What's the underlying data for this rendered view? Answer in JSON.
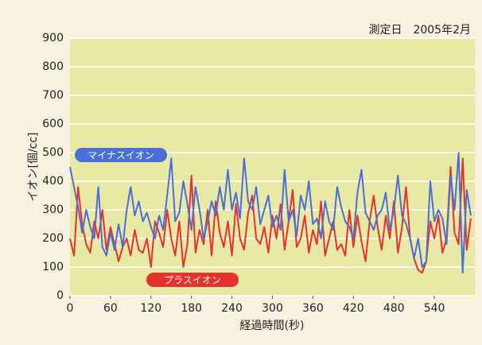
{
  "chart_data": {
    "type": "line",
    "title": "測定日　2005年2月",
    "y_label": "イオン[個/cc]",
    "x_label": "経過時間(秒)",
    "x": [
      0,
      6,
      12,
      18,
      24,
      30,
      36,
      42,
      48,
      54,
      60,
      66,
      72,
      78,
      84,
      90,
      96,
      102,
      108,
      114,
      120,
      126,
      132,
      138,
      144,
      150,
      156,
      162,
      168,
      174,
      180,
      186,
      192,
      198,
      204,
      210,
      216,
      222,
      228,
      234,
      240,
      246,
      252,
      258,
      264,
      270,
      276,
      282,
      288,
      294,
      300,
      306,
      312,
      318,
      324,
      330,
      336,
      342,
      348,
      354,
      360,
      366,
      372,
      378,
      384,
      390,
      396,
      402,
      408,
      414,
      420,
      426,
      432,
      438,
      444,
      450,
      456,
      462,
      468,
      474,
      480,
      486,
      492,
      498,
      504,
      510,
      516,
      522,
      528,
      534,
      540,
      546,
      552,
      558,
      564,
      570,
      576,
      582,
      588,
      594
    ],
    "series": [
      {
        "name": "マイナスイオン",
        "color": "#4a6fd6",
        "values": [
          450,
          380,
          310,
          220,
          300,
          240,
          200,
          380,
          170,
          140,
          220,
          160,
          250,
          170,
          300,
          380,
          280,
          330,
          260,
          290,
          240,
          200,
          280,
          230,
          350,
          480,
          260,
          290,
          400,
          320,
          230,
          380,
          300,
          200,
          260,
          330,
          280,
          380,
          300,
          440,
          300,
          360,
          270,
          480,
          330,
          300,
          380,
          250,
          300,
          350,
          240,
          280,
          230,
          440,
          260,
          300,
          210,
          350,
          300,
          400,
          250,
          270,
          200,
          330,
          260,
          230,
          380,
          310,
          260,
          240,
          200,
          360,
          440,
          290,
          260,
          230,
          280,
          300,
          360,
          230,
          300,
          420,
          280,
          250,
          200,
          130,
          200,
          100,
          120,
          400,
          260,
          300,
          270,
          180,
          420,
          300,
          500,
          80,
          370,
          280
        ]
      },
      {
        "name": "プラスイオン",
        "color": "#e5322e",
        "values": [
          200,
          140,
          380,
          250,
          180,
          150,
          260,
          200,
          300,
          160,
          240,
          180,
          120,
          170,
          200,
          140,
          230,
          160,
          150,
          200,
          100,
          260,
          220,
          170,
          300,
          200,
          140,
          260,
          100,
          180,
          420,
          150,
          230,
          180,
          300,
          140,
          330,
          220,
          170,
          260,
          140,
          320,
          200,
          160,
          290,
          350,
          200,
          180,
          240,
          150,
          280,
          200,
          320,
          160,
          260,
          370,
          170,
          200,
          280,
          150,
          230,
          180,
          330,
          140,
          200,
          260,
          160,
          180,
          140,
          300,
          170,
          280,
          190,
          120,
          260,
          350,
          240,
          160,
          280,
          200,
          330,
          150,
          240,
          380,
          200,
          130,
          90,
          80,
          120,
          260,
          200,
          280,
          150,
          200,
          450,
          220,
          180,
          480,
          160,
          270
        ]
      }
    ],
    "xlim": [
      0,
      600
    ],
    "ylim": [
      0,
      900
    ],
    "xticks": [
      0,
      60,
      120,
      180,
      240,
      300,
      360,
      420,
      480,
      540
    ],
    "yticks": [
      0,
      100,
      200,
      300,
      400,
      500,
      600,
      700,
      800,
      900
    ],
    "grid": true
  }
}
